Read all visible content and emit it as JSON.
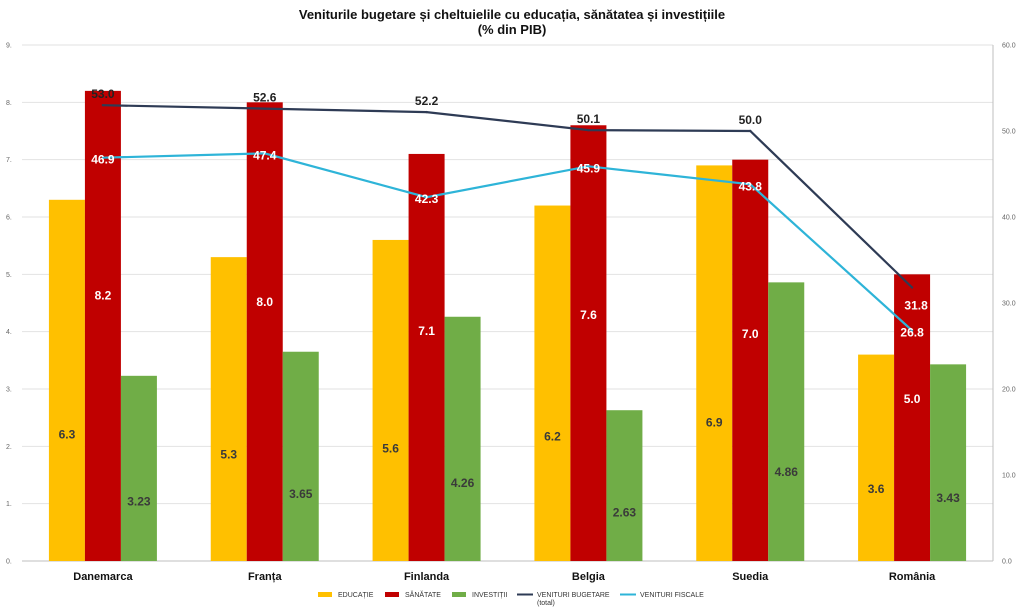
{
  "chart_data": {
    "type": "bar",
    "title": "Veniturile bugetare și cheltuielile cu educația, sănătatea și investițiile",
    "subtitle": "(% din PIB)",
    "categories": [
      "Danemarca",
      "Franța",
      "Finlanda",
      "Belgia",
      "Suedia",
      "România"
    ],
    "y_left_range": [
      0,
      9
    ],
    "y_left_ticks": [
      "0.",
      "1.",
      "2.",
      "3.",
      "4.",
      "5.",
      "6.",
      "7.",
      "8.",
      "9."
    ],
    "y_right_range": [
      0,
      60
    ],
    "y_right_ticks": [
      "0.0",
      "10.0",
      "20.0",
      "30.0",
      "40.0",
      "50.0",
      "60.0"
    ],
    "grid": true,
    "legend_position": "bottom",
    "series": [
      {
        "name": "EDUCAȚIE",
        "kind": "bar",
        "axis": "left",
        "color": "#ffc000",
        "values": [
          6.3,
          5.3,
          5.6,
          6.2,
          6.9,
          3.6
        ],
        "labels": [
          "6.3",
          "5.3",
          "5.6",
          "6.2",
          "6.9",
          "3.6"
        ]
      },
      {
        "name": "SĂNĂTATE",
        "kind": "bar",
        "axis": "left",
        "color": "#c00000",
        "values": [
          8.2,
          8.0,
          7.1,
          7.6,
          7.0,
          5.0
        ],
        "labels": [
          "8.2",
          "8.0",
          "7.1",
          "7.6",
          "7.0",
          "5.0"
        ]
      },
      {
        "name": "INVESTIȚII",
        "kind": "bar",
        "axis": "left",
        "color": "#70ad47",
        "values": [
          3.23,
          3.65,
          4.26,
          2.63,
          4.86,
          3.43
        ],
        "labels": [
          "3.23",
          "3.65",
          "4.26",
          "2.63",
          "4.86",
          "3.43"
        ]
      },
      {
        "name": "VENITURI BUGETARE (total)",
        "legend_lines": [
          "VENITURI BUGETARE",
          "(total)"
        ],
        "kind": "line",
        "axis": "right",
        "color": "#2e3b55",
        "values": [
          53.0,
          52.6,
          52.2,
          50.1,
          50.0,
          31.8
        ],
        "labels": [
          "53.0",
          "52.6",
          "52.2",
          "50.1",
          "50.0",
          "31.8"
        ]
      },
      {
        "name": "VENITURI FISCALE",
        "legend_lines": [
          "VENITURI FISCALE"
        ],
        "kind": "line",
        "axis": "right",
        "color": "#2eb4d8",
        "values": [
          46.9,
          47.4,
          42.3,
          45.9,
          43.8,
          26.8
        ],
        "labels": [
          "46.9",
          "47.4",
          "42.3",
          "45.9",
          "43.8",
          "26.8"
        ]
      }
    ]
  }
}
